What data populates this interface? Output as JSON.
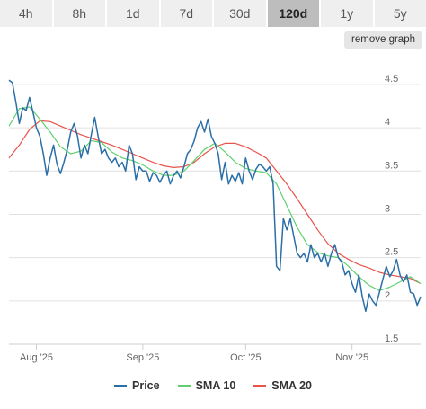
{
  "timeframes": [
    {
      "label": "4h",
      "active": false
    },
    {
      "label": "8h",
      "active": false
    },
    {
      "label": "1d",
      "active": false
    },
    {
      "label": "7d",
      "active": false
    },
    {
      "label": "30d",
      "active": false
    },
    {
      "label": "120d",
      "active": true
    },
    {
      "label": "1y",
      "active": false
    },
    {
      "label": "5y",
      "active": false
    }
  ],
  "remove_graph_label": "remove graph",
  "colors": {
    "price": "#2a6fa8",
    "sma10": "#5ed16e",
    "sma20": "#e8534a",
    "grid": "#e0e0e0"
  },
  "chart_data": {
    "type": "line",
    "title": "",
    "xlabel": "",
    "ylabel": "",
    "grid": true,
    "legend_position": "bottom",
    "x_range": [
      "2025-07-24",
      "2025-11-21"
    ],
    "ylim": [
      1.5,
      4.8
    ],
    "y_ticks": [
      1.5,
      2,
      2.5,
      3,
      3.5,
      4,
      4.5
    ],
    "y_tick_labels": [
      "1.5",
      "2",
      "2.5",
      "3",
      "3.5",
      "4",
      "4.5"
    ],
    "x_ticks": [
      "2025-08-01",
      "2025-09-01",
      "2025-10-01",
      "2025-11-01"
    ],
    "x_tick_labels": [
      "Aug '25",
      "Sep '25",
      "Oct '25",
      "Nov '25"
    ],
    "series": [
      {
        "name": "Price",
        "points": [
          [
            "2025-07-24",
            4.55
          ],
          [
            "2025-07-25",
            4.52
          ],
          [
            "2025-07-26",
            4.3
          ],
          [
            "2025-07-27",
            4.05
          ],
          [
            "2025-07-28",
            4.23
          ],
          [
            "2025-07-29",
            4.2
          ],
          [
            "2025-07-30",
            4.35
          ],
          [
            "2025-07-31",
            4.18
          ],
          [
            "2025-08-01",
            4.0
          ],
          [
            "2025-08-02",
            3.9
          ],
          [
            "2025-08-03",
            3.7
          ],
          [
            "2025-08-04",
            3.45
          ],
          [
            "2025-08-05",
            3.65
          ],
          [
            "2025-08-06",
            3.8
          ],
          [
            "2025-08-07",
            3.58
          ],
          [
            "2025-08-08",
            3.47
          ],
          [
            "2025-08-09",
            3.6
          ],
          [
            "2025-08-10",
            3.75
          ],
          [
            "2025-08-11",
            3.95
          ],
          [
            "2025-08-12",
            4.05
          ],
          [
            "2025-08-13",
            3.9
          ],
          [
            "2025-08-14",
            3.65
          ],
          [
            "2025-08-15",
            3.8
          ],
          [
            "2025-08-16",
            3.7
          ],
          [
            "2025-08-17",
            3.92
          ],
          [
            "2025-08-18",
            4.12
          ],
          [
            "2025-08-19",
            3.9
          ],
          [
            "2025-08-20",
            3.7
          ],
          [
            "2025-08-21",
            3.75
          ],
          [
            "2025-08-22",
            3.65
          ],
          [
            "2025-08-23",
            3.6
          ],
          [
            "2025-08-24",
            3.65
          ],
          [
            "2025-08-25",
            3.55
          ],
          [
            "2025-08-26",
            3.6
          ],
          [
            "2025-08-27",
            3.5
          ],
          [
            "2025-08-28",
            3.8
          ],
          [
            "2025-08-29",
            3.7
          ],
          [
            "2025-08-30",
            3.4
          ],
          [
            "2025-08-31",
            3.55
          ],
          [
            "2025-09-01",
            3.5
          ],
          [
            "2025-09-02",
            3.5
          ],
          [
            "2025-09-03",
            3.38
          ],
          [
            "2025-09-04",
            3.48
          ],
          [
            "2025-09-05",
            3.45
          ],
          [
            "2025-09-06",
            3.37
          ],
          [
            "2025-09-07",
            3.45
          ],
          [
            "2025-09-08",
            3.5
          ],
          [
            "2025-09-09",
            3.35
          ],
          [
            "2025-09-10",
            3.45
          ],
          [
            "2025-09-11",
            3.5
          ],
          [
            "2025-09-12",
            3.42
          ],
          [
            "2025-09-13",
            3.55
          ],
          [
            "2025-09-14",
            3.7
          ],
          [
            "2025-09-15",
            3.75
          ],
          [
            "2025-09-16",
            3.85
          ],
          [
            "2025-09-17",
            4.0
          ],
          [
            "2025-09-18",
            4.07
          ],
          [
            "2025-09-19",
            3.95
          ],
          [
            "2025-09-20",
            4.1
          ],
          [
            "2025-09-21",
            3.9
          ],
          [
            "2025-09-22",
            3.82
          ],
          [
            "2025-09-23",
            3.7
          ],
          [
            "2025-09-24",
            3.4
          ],
          [
            "2025-09-25",
            3.6
          ],
          [
            "2025-09-26",
            3.35
          ],
          [
            "2025-09-27",
            3.45
          ],
          [
            "2025-09-28",
            3.38
          ],
          [
            "2025-09-29",
            3.48
          ],
          [
            "2025-09-30",
            3.35
          ],
          [
            "2025-10-01",
            3.65
          ],
          [
            "2025-10-02",
            3.5
          ],
          [
            "2025-10-03",
            3.4
          ],
          [
            "2025-10-04",
            3.52
          ],
          [
            "2025-10-05",
            3.58
          ],
          [
            "2025-10-06",
            3.55
          ],
          [
            "2025-10-07",
            3.5
          ],
          [
            "2025-10-08",
            3.55
          ],
          [
            "2025-10-09",
            3.35
          ],
          [
            "2025-10-10",
            2.4
          ],
          [
            "2025-10-11",
            2.35
          ],
          [
            "2025-10-12",
            2.95
          ],
          [
            "2025-10-13",
            2.82
          ],
          [
            "2025-10-14",
            2.95
          ],
          [
            "2025-10-15",
            2.75
          ],
          [
            "2025-10-16",
            2.55
          ],
          [
            "2025-10-17",
            2.5
          ],
          [
            "2025-10-18",
            2.55
          ],
          [
            "2025-10-19",
            2.45
          ],
          [
            "2025-10-20",
            2.65
          ],
          [
            "2025-10-21",
            2.5
          ],
          [
            "2025-10-22",
            2.55
          ],
          [
            "2025-10-23",
            2.45
          ],
          [
            "2025-10-24",
            2.55
          ],
          [
            "2025-10-25",
            2.4
          ],
          [
            "2025-10-26",
            2.55
          ],
          [
            "2025-10-27",
            2.65
          ],
          [
            "2025-10-28",
            2.5
          ],
          [
            "2025-10-29",
            2.45
          ],
          [
            "2025-10-30",
            2.3
          ],
          [
            "2025-10-31",
            2.35
          ],
          [
            "2025-11-01",
            2.2
          ],
          [
            "2025-11-02",
            2.1
          ],
          [
            "2025-11-03",
            2.3
          ],
          [
            "2025-11-04",
            2.05
          ],
          [
            "2025-11-05",
            1.88
          ],
          [
            "2025-11-06",
            2.08
          ],
          [
            "2025-11-07",
            2.0
          ],
          [
            "2025-11-08",
            1.95
          ],
          [
            "2025-11-09",
            2.1
          ],
          [
            "2025-11-10",
            2.25
          ],
          [
            "2025-11-11",
            2.4
          ],
          [
            "2025-11-12",
            2.28
          ],
          [
            "2025-11-13",
            2.35
          ],
          [
            "2025-11-14",
            2.48
          ],
          [
            "2025-11-15",
            2.3
          ],
          [
            "2025-11-16",
            2.22
          ],
          [
            "2025-11-17",
            2.3
          ],
          [
            "2025-11-18",
            2.1
          ],
          [
            "2025-11-19",
            2.08
          ],
          [
            "2025-11-20",
            1.95
          ],
          [
            "2025-11-21",
            2.05
          ]
        ]
      },
      {
        "name": "SMA 10",
        "points": [
          [
            "2025-07-24",
            4.02
          ],
          [
            "2025-07-27",
            4.22
          ],
          [
            "2025-07-30",
            4.24
          ],
          [
            "2025-08-02",
            4.1
          ],
          [
            "2025-08-05",
            3.95
          ],
          [
            "2025-08-08",
            3.78
          ],
          [
            "2025-08-11",
            3.7
          ],
          [
            "2025-08-14",
            3.73
          ],
          [
            "2025-08-17",
            3.85
          ],
          [
            "2025-08-20",
            3.83
          ],
          [
            "2025-08-23",
            3.72
          ],
          [
            "2025-08-26",
            3.65
          ],
          [
            "2025-08-29",
            3.62
          ],
          [
            "2025-09-01",
            3.57
          ],
          [
            "2025-09-04",
            3.5
          ],
          [
            "2025-09-07",
            3.45
          ],
          [
            "2025-09-10",
            3.45
          ],
          [
            "2025-09-13",
            3.5
          ],
          [
            "2025-09-16",
            3.62
          ],
          [
            "2025-09-19",
            3.75
          ],
          [
            "2025-09-22",
            3.82
          ],
          [
            "2025-09-25",
            3.72
          ],
          [
            "2025-09-28",
            3.6
          ],
          [
            "2025-10-01",
            3.53
          ],
          [
            "2025-10-04",
            3.5
          ],
          [
            "2025-10-07",
            3.48
          ],
          [
            "2025-10-10",
            3.35
          ],
          [
            "2025-10-13",
            3.1
          ],
          [
            "2025-10-16",
            2.85
          ],
          [
            "2025-10-19",
            2.65
          ],
          [
            "2025-10-22",
            2.56
          ],
          [
            "2025-10-25",
            2.52
          ],
          [
            "2025-10-28",
            2.5
          ],
          [
            "2025-10-31",
            2.4
          ],
          [
            "2025-11-03",
            2.28
          ],
          [
            "2025-11-06",
            2.18
          ],
          [
            "2025-11-09",
            2.12
          ],
          [
            "2025-11-12",
            2.16
          ],
          [
            "2025-11-15",
            2.22
          ],
          [
            "2025-11-18",
            2.28
          ],
          [
            "2025-11-21",
            2.2
          ]
        ]
      },
      {
        "name": "SMA 20",
        "points": [
          [
            "2025-07-24",
            3.65
          ],
          [
            "2025-07-27",
            3.8
          ],
          [
            "2025-07-30",
            3.98
          ],
          [
            "2025-08-02",
            4.08
          ],
          [
            "2025-08-05",
            4.07
          ],
          [
            "2025-08-08",
            4.02
          ],
          [
            "2025-08-11",
            3.97
          ],
          [
            "2025-08-14",
            3.92
          ],
          [
            "2025-08-17",
            3.88
          ],
          [
            "2025-08-20",
            3.84
          ],
          [
            "2025-08-23",
            3.8
          ],
          [
            "2025-08-26",
            3.75
          ],
          [
            "2025-08-29",
            3.7
          ],
          [
            "2025-09-01",
            3.65
          ],
          [
            "2025-09-04",
            3.6
          ],
          [
            "2025-09-07",
            3.56
          ],
          [
            "2025-09-10",
            3.54
          ],
          [
            "2025-09-13",
            3.55
          ],
          [
            "2025-09-16",
            3.6
          ],
          [
            "2025-09-19",
            3.7
          ],
          [
            "2025-09-22",
            3.78
          ],
          [
            "2025-09-25",
            3.82
          ],
          [
            "2025-09-28",
            3.82
          ],
          [
            "2025-10-01",
            3.78
          ],
          [
            "2025-10-04",
            3.72
          ],
          [
            "2025-10-07",
            3.65
          ],
          [
            "2025-10-10",
            3.5
          ],
          [
            "2025-10-13",
            3.35
          ],
          [
            "2025-10-16",
            3.18
          ],
          [
            "2025-10-19",
            3.0
          ],
          [
            "2025-10-22",
            2.82
          ],
          [
            "2025-10-25",
            2.66
          ],
          [
            "2025-10-28",
            2.55
          ],
          [
            "2025-10-31",
            2.48
          ],
          [
            "2025-11-03",
            2.42
          ],
          [
            "2025-11-06",
            2.38
          ],
          [
            "2025-11-09",
            2.33
          ],
          [
            "2025-11-12",
            2.3
          ],
          [
            "2025-11-15",
            2.28
          ],
          [
            "2025-11-18",
            2.26
          ],
          [
            "2025-11-21",
            2.2
          ]
        ]
      }
    ]
  }
}
